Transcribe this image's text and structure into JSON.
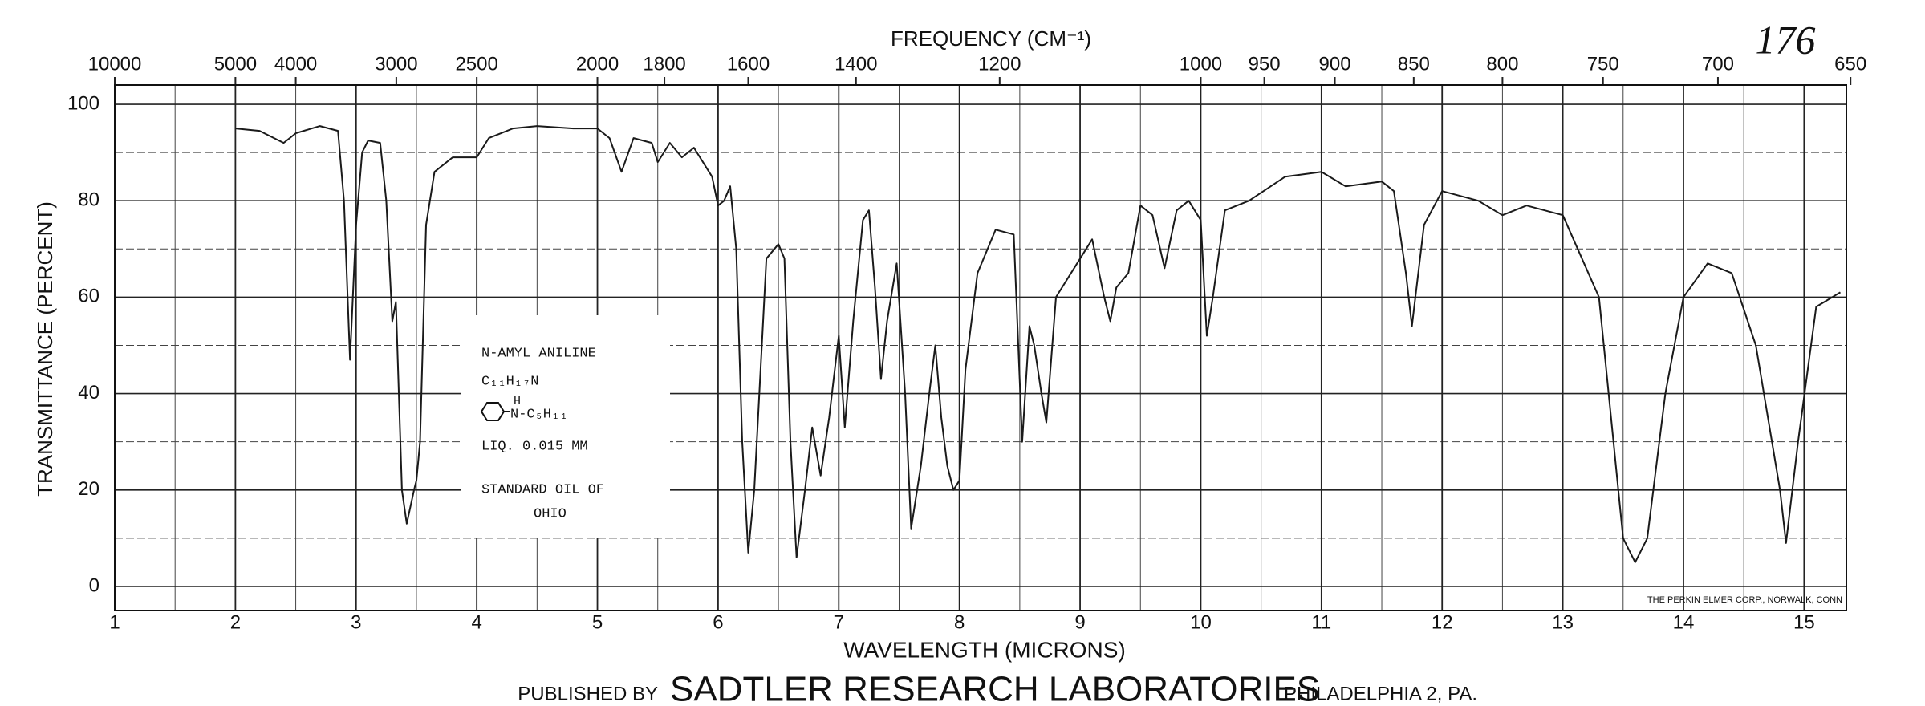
{
  "chart_data": {
    "type": "line",
    "title": "FREQUENCY (CM⁻¹)",
    "xlabel": "WAVELENGTH (MICRONS)",
    "ylabel": "TRANSMITTANCE (PERCENT)",
    "page_number": "176",
    "inset": [
      "N-AMYL ANILINE",
      "C₁₁H₁₇N",
      "H",
      "N-C₅H₁₁",
      "LIQ.   0.015 MM",
      "STANDARD OIL OF",
      "OHIO"
    ],
    "footer": [
      "PUBLISHED BY",
      "SADTLER RESEARCH LABORATORIES",
      "PHILADELPHIA 2, PA."
    ],
    "credit": "THE PERKIN ELMER CORP., NORWALK, CONN",
    "color": "#1a1a1a",
    "grid": true,
    "xlim": [
      1,
      15.35
    ],
    "xticks": [
      1,
      2,
      3,
      4,
      5,
      6,
      7,
      8,
      9,
      10,
      11,
      12,
      13,
      14,
      15
    ],
    "xminor_ticks": [
      1.5,
      2.5,
      3.5,
      4.5,
      5.5,
      6.5,
      7.5,
      8.5,
      9.5,
      10.5,
      11.5,
      12.5,
      13.5,
      14.5
    ],
    "x2ticks": [
      10000,
      5000,
      4000,
      3000,
      2500,
      2000,
      1800,
      1600,
      1400,
      1200,
      1000,
      950,
      900,
      850,
      800,
      750,
      700,
      650
    ],
    "ylim": [
      -5,
      104
    ],
    "yticks": [
      0,
      20,
      40,
      60,
      80,
      100
    ],
    "yminor_ticks": [
      10,
      30,
      50,
      70,
      90
    ],
    "x": [
      2.0,
      2.2,
      2.4,
      2.5,
      2.7,
      2.85,
      2.9,
      2.95,
      3.0,
      3.05,
      3.1,
      3.2,
      3.25,
      3.3,
      3.33,
      3.38,
      3.42,
      3.48,
      3.5,
      3.53,
      3.58,
      3.65,
      3.8,
      4.0,
      4.1,
      4.3,
      4.5,
      4.8,
      5.0,
      5.1,
      5.2,
      5.3,
      5.45,
      5.5,
      5.6,
      5.7,
      5.8,
      5.95,
      6.0,
      6.05,
      6.1,
      6.15,
      6.2,
      6.25,
      6.3,
      6.4,
      6.5,
      6.55,
      6.6,
      6.65,
      6.72,
      6.78,
      6.85,
      6.92,
      7.0,
      7.05,
      7.12,
      7.2,
      7.25,
      7.3,
      7.35,
      7.4,
      7.48,
      7.55,
      7.6,
      7.68,
      7.75,
      7.8,
      7.85,
      7.9,
      7.95,
      8.0,
      8.05,
      8.15,
      8.3,
      8.45,
      8.52,
      8.58,
      8.62,
      8.68,
      8.72,
      8.8,
      9.0,
      9.1,
      9.2,
      9.25,
      9.3,
      9.4,
      9.5,
      9.6,
      9.7,
      9.8,
      9.9,
      10.0,
      10.05,
      10.1,
      10.2,
      10.4,
      10.7,
      11.0,
      11.2,
      11.5,
      11.6,
      11.7,
      11.75,
      11.85,
      12.0,
      12.3,
      12.5,
      12.7,
      13.0,
      13.3,
      13.5,
      13.6,
      13.7,
      13.85,
      14.0,
      14.2,
      14.4,
      14.6,
      14.8,
      14.85,
      14.95,
      15.1,
      15.3
    ],
    "values": [
      95,
      94.5,
      92,
      94,
      95.5,
      94.5,
      80,
      47,
      75,
      90,
      92.5,
      92,
      80,
      55,
      59,
      20,
      13,
      20,
      22,
      30,
      75,
      86,
      89,
      89,
      93,
      95,
      95.5,
      95,
      95,
      93,
      86,
      93,
      92,
      88,
      92,
      89,
      91,
      85,
      79,
      80,
      83,
      70,
      30,
      7,
      20,
      68,
      71,
      68,
      30,
      6,
      20,
      33,
      23,
      35,
      52,
      33,
      55,
      76,
      78,
      62,
      43,
      55,
      67,
      40,
      12,
      25,
      40,
      50,
      35,
      25,
      20,
      22,
      45,
      65,
      74,
      73,
      30,
      54,
      50,
      40,
      34,
      60,
      68,
      72,
      60,
      55,
      62,
      65,
      79,
      77,
      66,
      78,
      80,
      76,
      52,
      60,
      78,
      80,
      85,
      86,
      83,
      84,
      82,
      65,
      54,
      75,
      82,
      80,
      77,
      79,
      77,
      60,
      10,
      5,
      10,
      40,
      60,
      67,
      65,
      50,
      20,
      9,
      30,
      58,
      61
    ]
  }
}
